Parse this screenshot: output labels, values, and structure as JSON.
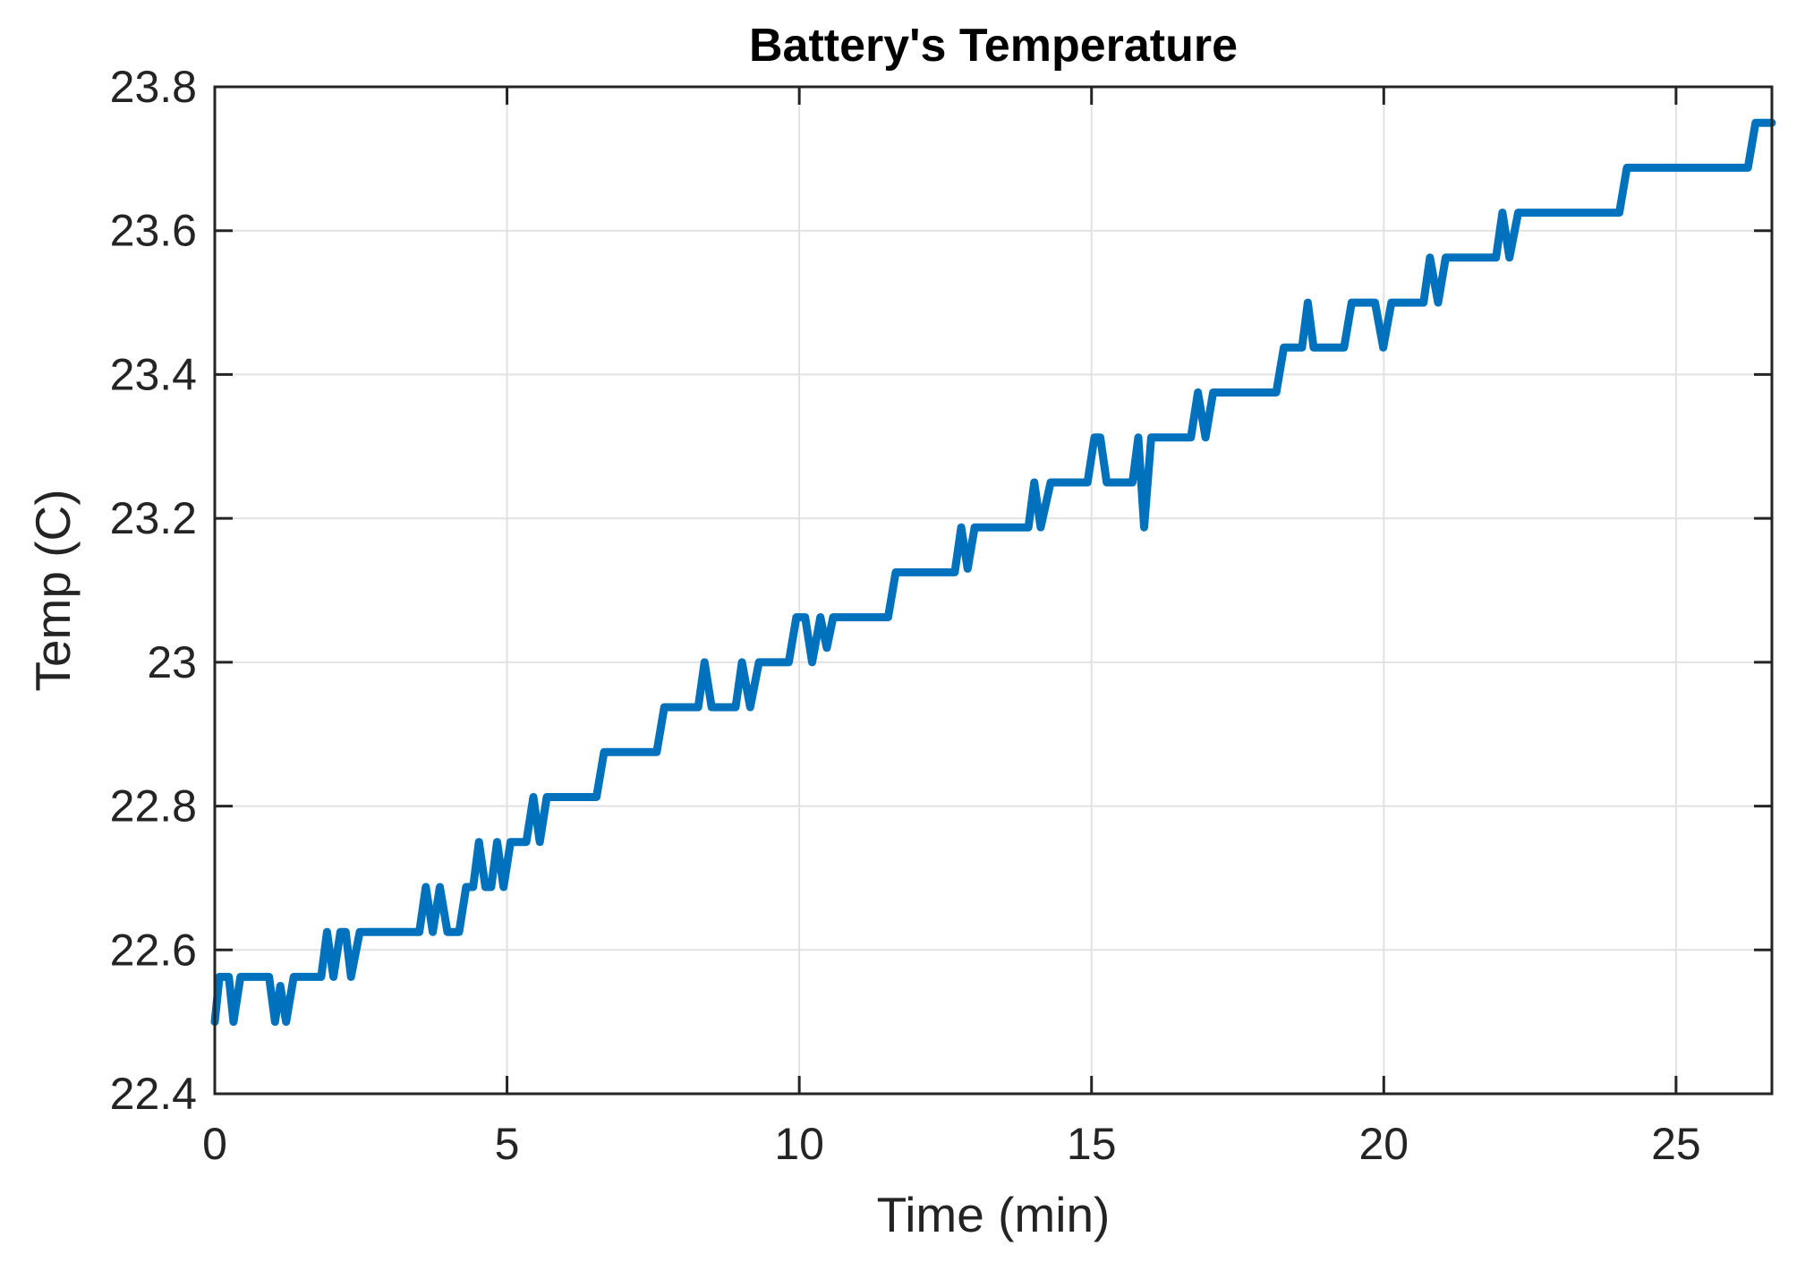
{
  "chart_data": {
    "type": "line",
    "title": "Battery's Temperature",
    "xlabel": "Time (min)",
    "ylabel": "Temp (C)",
    "xlim": [
      0,
      26.64
    ],
    "ylim": [
      22.4,
      23.8
    ],
    "xticks": [
      0,
      5,
      10,
      15,
      20,
      25
    ],
    "yticks": [
      22.4,
      22.6,
      22.8,
      23,
      23.2,
      23.4,
      23.6,
      23.8
    ],
    "grid": true,
    "legend": "none",
    "line_color": "#0072BD",
    "line_width": 9,
    "axis_color": "#242424",
    "grid_color": "#e2e2e2",
    "background_color": "#ffffff",
    "series": [
      {
        "name": "battery-temperature",
        "points": [
          [
            0.0,
            22.5
          ],
          [
            0.08,
            22.5625
          ],
          [
            0.24,
            22.5625
          ],
          [
            0.32,
            22.5
          ],
          [
            0.44,
            22.5625
          ],
          [
            0.93,
            22.5625
          ],
          [
            1.03,
            22.5
          ],
          [
            1.12,
            22.55
          ],
          [
            1.22,
            22.5
          ],
          [
            1.35,
            22.5625
          ],
          [
            1.82,
            22.5625
          ],
          [
            1.92,
            22.625
          ],
          [
            2.03,
            22.5625
          ],
          [
            2.15,
            22.625
          ],
          [
            2.24,
            22.625
          ],
          [
            2.33,
            22.5625
          ],
          [
            2.48,
            22.625
          ],
          [
            3.5,
            22.625
          ],
          [
            3.61,
            22.6875
          ],
          [
            3.73,
            22.625
          ],
          [
            3.85,
            22.6875
          ],
          [
            3.98,
            22.625
          ],
          [
            4.18,
            22.625
          ],
          [
            4.3,
            22.6875
          ],
          [
            4.42,
            22.6875
          ],
          [
            4.52,
            22.75
          ],
          [
            4.63,
            22.6875
          ],
          [
            4.73,
            22.6875
          ],
          [
            4.83,
            22.75
          ],
          [
            4.94,
            22.6875
          ],
          [
            5.06,
            22.75
          ],
          [
            5.33,
            22.75
          ],
          [
            5.45,
            22.8125
          ],
          [
            5.56,
            22.75
          ],
          [
            5.68,
            22.8125
          ],
          [
            5.82,
            22.8125
          ],
          [
            6.53,
            22.8125
          ],
          [
            6.66,
            22.875
          ],
          [
            7.56,
            22.875
          ],
          [
            7.69,
            22.9375
          ],
          [
            8.27,
            22.9375
          ],
          [
            8.38,
            23
          ],
          [
            8.5,
            22.9375
          ],
          [
            8.91,
            22.9375
          ],
          [
            9.02,
            23
          ],
          [
            9.16,
            22.9375
          ],
          [
            9.31,
            23
          ],
          [
            9.82,
            23
          ],
          [
            9.95,
            23.0625
          ],
          [
            10.1,
            23.0625
          ],
          [
            10.22,
            23
          ],
          [
            10.36,
            23.0625
          ],
          [
            10.47,
            23.02
          ],
          [
            10.58,
            23.0625
          ],
          [
            11.52,
            23.0625
          ],
          [
            11.65,
            23.125
          ],
          [
            12.66,
            23.125
          ],
          [
            12.77,
            23.1875
          ],
          [
            12.88,
            23.13
          ],
          [
            13.0,
            23.1875
          ],
          [
            13.92,
            23.1875
          ],
          [
            14.02,
            23.25
          ],
          [
            14.13,
            23.1875
          ],
          [
            14.3,
            23.25
          ],
          [
            14.93,
            23.25
          ],
          [
            15.05,
            23.3125
          ],
          [
            15.15,
            23.3125
          ],
          [
            15.26,
            23.25
          ],
          [
            15.7,
            23.25
          ],
          [
            15.8,
            23.3125
          ],
          [
            15.9,
            23.1875
          ],
          [
            16.02,
            23.3125
          ],
          [
            16.7,
            23.3125
          ],
          [
            16.82,
            23.375
          ],
          [
            16.95,
            23.3125
          ],
          [
            17.08,
            23.375
          ],
          [
            18.16,
            23.375
          ],
          [
            18.29,
            23.4375
          ],
          [
            18.6,
            23.4375
          ],
          [
            18.7,
            23.5
          ],
          [
            18.8,
            23.4375
          ],
          [
            19.32,
            23.4375
          ],
          [
            19.45,
            23.5
          ],
          [
            19.85,
            23.5
          ],
          [
            19.99,
            23.4375
          ],
          [
            20.13,
            23.5
          ],
          [
            20.68,
            23.5
          ],
          [
            20.79,
            23.5625
          ],
          [
            20.93,
            23.5
          ],
          [
            21.06,
            23.5625
          ],
          [
            21.92,
            23.5625
          ],
          [
            22.03,
            23.625
          ],
          [
            22.15,
            23.5625
          ],
          [
            22.3,
            23.625
          ],
          [
            24.03,
            23.625
          ],
          [
            24.16,
            23.6875
          ],
          [
            26.23,
            23.6875
          ],
          [
            26.36,
            23.75
          ],
          [
            26.64,
            23.75
          ]
        ]
      }
    ]
  }
}
